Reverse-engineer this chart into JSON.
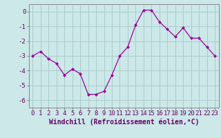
{
  "x": [
    0,
    1,
    2,
    3,
    4,
    5,
    6,
    7,
    8,
    9,
    10,
    11,
    12,
    13,
    14,
    15,
    16,
    17,
    18,
    19,
    20,
    21,
    22,
    23
  ],
  "y": [
    -3.0,
    -2.7,
    -3.2,
    -3.5,
    -4.3,
    -3.9,
    -4.2,
    -5.6,
    -5.6,
    -5.4,
    -4.3,
    -3.0,
    -2.4,
    -0.9,
    0.1,
    0.1,
    -0.7,
    -1.2,
    -1.7,
    -1.1,
    -1.8,
    -1.8,
    -2.4,
    -3.0
  ],
  "line_color": "#990099",
  "marker": "D",
  "marker_size": 2.0,
  "bg_color": "#cce8e8",
  "grid_color": "#aacccc",
  "xlabel": "Windchill (Refroidissement éolien,°C)",
  "xlabel_color": "#660066",
  "xlabel_fontsize": 7.0,
  "tick_color": "#660066",
  "tick_fontsize": 6.5,
  "ylim": [
    -6.5,
    0.5
  ],
  "yticks": [
    0,
    -1,
    -2,
    -3,
    -4,
    -5,
    -6
  ],
  "xlim": [
    -0.5,
    23.5
  ],
  "xticks": [
    0,
    1,
    2,
    3,
    4,
    5,
    6,
    7,
    8,
    9,
    10,
    11,
    12,
    13,
    14,
    15,
    16,
    17,
    18,
    19,
    20,
    21,
    22,
    23
  ]
}
